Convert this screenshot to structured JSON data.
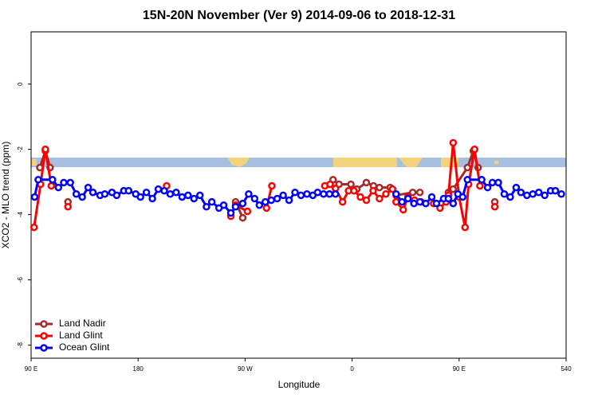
{
  "chart_data": {
    "type": "line",
    "title": "15N-20N November (Ver 9)   2014-09-06 to 2018-12-31",
    "xlabel": "Longitude",
    "ylabel": "XCO2 - MLO trend (ppm)",
    "xlim": [
      90,
      540
    ],
    "ylim": [
      -8.4,
      1.6
    ],
    "xticks": [
      {
        "value": 90,
        "label": "90 E"
      },
      180,
      {
        "value": 270,
        "label": "90 W"
      },
      {
        "value": 360,
        "label": "0"
      },
      {
        "value": 450,
        "label": "90 E"
      },
      540
    ],
    "yticks": [
      0,
      -2,
      -4,
      -6,
      -8
    ],
    "legend": "bottomleft",
    "series": [
      {
        "name": "Land Nadir",
        "color": "#a52a2a",
        "x": [
          97.4,
          102,
          106,
          null,
          121,
          null,
          262,
          268,
          null,
          344,
          349,
          359,
          364,
          372,
          378,
          383,
          392,
          397,
          411,
          417,
          null,
          441,
          445,
          457,
          462,
          466,
          null,
          480
        ],
        "values": [
          -2.56,
          -2.05,
          -2.56,
          null,
          -3.61,
          null,
          -3.61,
          -4.1,
          null,
          -2.93,
          -3.07,
          -3.07,
          -3.22,
          -3.02,
          -3.12,
          -3.17,
          -3.17,
          -3.41,
          -3.32,
          -3.32,
          null,
          -3.32,
          -3.22,
          -2.56,
          -2.05,
          -2.56,
          null,
          -3.61
        ]
      },
      {
        "name": "Land Glint",
        "color": "#ff0000",
        "x": [
          92.5,
          98,
          102,
          107,
          null,
          121,
          null,
          204,
          null,
          258,
          262,
          272,
          null,
          288,
          292.5,
          null,
          337,
          341.5,
          346,
          352,
          357,
          361.6,
          367,
          372,
          377.7,
          383,
          388.4,
          394,
          397,
          403,
          407,
          412.6,
          418,
          null,
          428.6,
          434,
          439,
          441,
          445,
          450,
          455,
          458,
          463,
          467.5,
          null,
          480
        ],
        "values": [
          -4.39,
          -3.07,
          -2.0,
          -3.12,
          null,
          -3.76,
          null,
          -3.12,
          null,
          -4.05,
          -3.71,
          -3.9,
          null,
          -3.8,
          -3.12,
          null,
          -3.12,
          -3.07,
          -3.2,
          -3.61,
          -3.27,
          -3.27,
          -3.46,
          -3.56,
          -3.27,
          -3.51,
          -3.37,
          -3.22,
          -3.61,
          -3.85,
          -3.46,
          -3.56,
          -3.61,
          null,
          -3.66,
          -3.8,
          -3.61,
          -3.41,
          -1.8,
          -3.46,
          -4.39,
          -3.07,
          -2.0,
          -3.12,
          null,
          -3.76
        ]
      },
      {
        "name": "Ocean Glint",
        "color": "#0000ff",
        "x": [
          93,
          96,
          108,
          113,
          117.5,
          123,
          128,
          133,
          138,
          142,
          148,
          152,
          158,
          162,
          168,
          172,
          178,
          182,
          187,
          192,
          197,
          202,
          207,
          212,
          217,
          222,
          227,
          232,
          237.5,
          242,
          248,
          252,
          258,
          262,
          268,
          273,
          278,
          282,
          287,
          292,
          297,
          302,
          307,
          312,
          317,
          322,
          327,
          331,
          336,
          341,
          346,
          null,
          397,
          402,
          407,
          412,
          417,
          422,
          427,
          431,
          437,
          441,
          445,
          449,
          453,
          457,
          469,
          474,
          478,
          483,
          488,
          493,
          498,
          502,
          507,
          512,
          517,
          522,
          527,
          531,
          536
        ],
        "values": [
          -3.46,
          -2.93,
          -2.93,
          -3.17,
          -3.02,
          -3.02,
          -3.37,
          -3.46,
          -3.17,
          -3.32,
          -3.41,
          -3.37,
          -3.32,
          -3.41,
          -3.27,
          -3.27,
          -3.37,
          -3.46,
          -3.32,
          -3.51,
          -3.22,
          -3.27,
          -3.37,
          -3.32,
          -3.46,
          -3.41,
          -3.51,
          -3.41,
          -3.76,
          -3.61,
          -3.8,
          -3.71,
          -3.95,
          -3.76,
          -3.66,
          -3.37,
          -3.51,
          -3.71,
          -3.61,
          -3.56,
          -3.51,
          -3.41,
          -3.56,
          -3.32,
          -3.41,
          -3.37,
          -3.41,
          -3.32,
          -3.37,
          -3.37,
          -3.37,
          null,
          -3.37,
          -3.61,
          -3.51,
          -3.66,
          -3.61,
          -3.66,
          -3.46,
          -3.66,
          -3.51,
          -3.51,
          -3.66,
          -3.37,
          -3.46,
          -2.93,
          -2.93,
          -3.17,
          -3.02,
          -3.02,
          -3.37,
          -3.46,
          -3.17,
          -3.32,
          -3.41,
          -3.37,
          -3.32,
          -3.41,
          -3.27,
          -3.27,
          -3.37
        ]
      }
    ]
  }
}
